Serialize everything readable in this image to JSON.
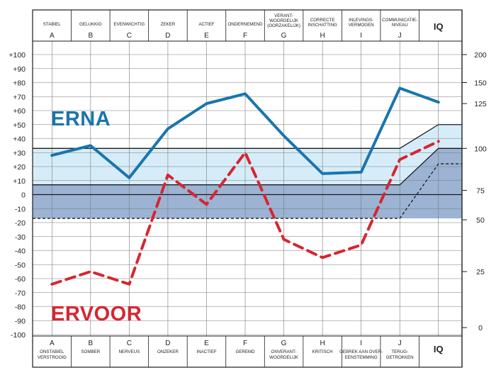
{
  "chart_data": {
    "type": "line",
    "ylim": [
      -100,
      100
    ],
    "y_ticks": [
      "+100",
      "+90",
      "+80",
      "+70",
      "+60",
      "+50",
      "+40",
      "+30",
      "+20",
      "+10",
      "0",
      "-10",
      "-20",
      "-30",
      "-40",
      "-50",
      "-60",
      "-70",
      "-80",
      "-90",
      "-100"
    ],
    "iq_ticks": [
      {
        "label": "200",
        "y": 100
      },
      {
        "label": "150",
        "y": 80
      },
      {
        "label": "125",
        "y": 65
      },
      {
        "label": "100",
        "y": 33
      },
      {
        "label": "75",
        "y": 3
      },
      {
        "label": "50",
        "y": -18
      },
      {
        "label": "25",
        "y": -55
      },
      {
        "label": "0",
        "y": -95
      }
    ],
    "iq_top_label": "IQ",
    "iq_bottom_label": "IQ",
    "columns": [
      {
        "letter": "A",
        "top": [
          "STABIEL"
        ],
        "bottom": [
          "ONSTABIEL",
          "VERSTROOID"
        ]
      },
      {
        "letter": "B",
        "top": [
          "GELUKKIG"
        ],
        "bottom": [
          "SOMBER"
        ]
      },
      {
        "letter": "C",
        "top": [
          "EVENWICHTIG"
        ],
        "bottom": [
          "NERVEUS"
        ]
      },
      {
        "letter": "D",
        "top": [
          "ZEKER"
        ],
        "bottom": [
          "ONZEKER"
        ]
      },
      {
        "letter": "E",
        "top": [
          "ACTIEF"
        ],
        "bottom": [
          "INACTIEF"
        ]
      },
      {
        "letter": "F",
        "top": [
          "ONDERNEMEND"
        ],
        "bottom": [
          "GEREMD"
        ]
      },
      {
        "letter": "G",
        "top": [
          "VERANT-",
          "WOORDELIJK",
          "(OORZAKELIJK)"
        ],
        "bottom": [
          "ONVERANT-",
          "WOORDELIJK"
        ]
      },
      {
        "letter": "H",
        "top": [
          "CORRECTE",
          "INSCHATTING"
        ],
        "bottom": [
          "KRITISCH"
        ]
      },
      {
        "letter": "I",
        "top": [
          "INLEVINGS-",
          "VERMOGEN"
        ],
        "bottom": [
          "GEBREK AAN OVER-",
          "EENSTEMMING"
        ]
      },
      {
        "letter": "J",
        "top": [
          "COMMUNICATIE-",
          "NIVEAU"
        ],
        "bottom": [
          "TERUG-",
          "GETROKKEN"
        ]
      }
    ],
    "bands": {
      "upper": [
        7,
        33
      ],
      "lower": [
        -17,
        7
      ],
      "iq_upper_end": [
        33,
        50
      ],
      "iq_lower_end": [
        -17,
        33
      ],
      "iq_dashed_end": 22
    },
    "series": [
      {
        "name": "ERNA",
        "color": "#1a75ad",
        "values": [
          28,
          35,
          12,
          47,
          65,
          72,
          42,
          15,
          16,
          76,
          66
        ]
      },
      {
        "name": "ERVOOR",
        "color": "#d62631",
        "values": [
          -64,
          -55,
          -64,
          14,
          -7,
          30,
          -32,
          -45,
          -36,
          25,
          38
        ]
      }
    ]
  }
}
